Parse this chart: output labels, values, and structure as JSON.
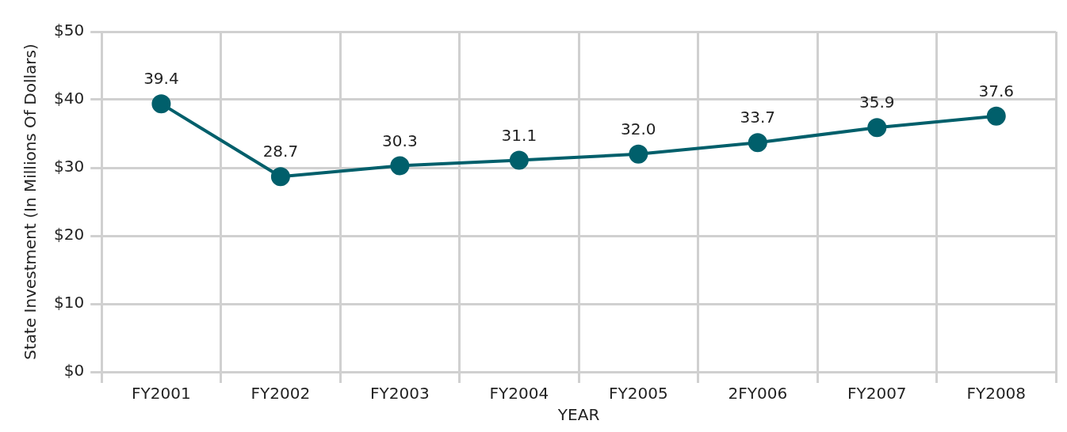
{
  "chart_data": {
    "type": "line",
    "xlabel": "YEAR",
    "ylabel": "State Investment (In Millions Of Dollars)",
    "categories": [
      "FY2001",
      "FY2002",
      "FY2003",
      "FY2004",
      "FY2005",
      "2FY006",
      "FY2007",
      "FY2008"
    ],
    "series": [
      {
        "color": "#005f6b",
        "values": [
          39.4,
          28.7,
          30.3,
          31.1,
          32.0,
          33.7,
          35.9,
          37.6
        ],
        "value_labels": [
          "39.4",
          "28.7",
          "30.3",
          "31.1",
          "32.0",
          "33.7",
          "35.9",
          "37.6"
        ]
      }
    ],
    "ylim": [
      0,
      50
    ],
    "yticks": [
      {
        "value": 0,
        "label": "$0"
      },
      {
        "value": 10,
        "label": "$10"
      },
      {
        "value": 20,
        "label": "$20"
      },
      {
        "value": 30,
        "label": "$30"
      },
      {
        "value": 40,
        "label": "$40"
      },
      {
        "value": 50,
        "label": "$50"
      }
    ],
    "grid": true,
    "legend": false,
    "marker": "circle",
    "line_style": "solid"
  }
}
